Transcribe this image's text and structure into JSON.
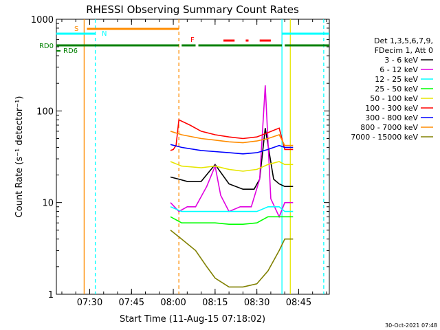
{
  "chart_data": {
    "type": "line",
    "title": "RHESSI Observing Summary Count Rates",
    "xlabel": "Start Time (11-Aug-15 07:18:02)",
    "ylabel": "Count Rate (s⁻¹ detector⁻¹)",
    "yscale": "log",
    "xlim": [
      "07:18:02",
      "08:56:00"
    ],
    "ylim": [
      1,
      1000
    ],
    "x_tick_labels": [
      "07:30",
      "07:45",
      "08:00",
      "08:15",
      "08:30",
      "08:45"
    ],
    "y_tick_labels": [
      "1",
      "10",
      "100",
      "1000"
    ],
    "legend_placement": "right",
    "legend_header": [
      "Det 1,3,5,6,7,9,",
      "FDecim 1, Att 0"
    ],
    "colors": {
      "3 - 6 keV": "#000000",
      "6 - 12 keV": "#e000e0",
      "12 - 25 keV": "#00ffff",
      "25 - 50 keV": "#00ff00",
      "50 - 100 keV": "#e6e600",
      "100 - 300 keV": "#ff0000",
      "300 - 800 keV": "#0000ff",
      "800 - 7000 keV": "#ff8c00",
      "7000 - 15000 keV": "#808000"
    },
    "series": [
      {
        "name": "3 - 6 keV",
        "x": [
          "07:59",
          "08:02",
          "08:05",
          "08:10",
          "08:15",
          "08:20",
          "08:25",
          "08:29",
          "08:31",
          "08:33",
          "08:36",
          "08:38",
          "08:40",
          "08:43"
        ],
        "y": [
          19,
          18,
          17,
          17,
          26,
          16,
          14,
          14,
          18,
          65,
          18,
          16,
          15,
          15
        ]
      },
      {
        "name": "6 - 12 keV",
        "x": [
          "07:59",
          "08:02",
          "08:05",
          "08:08",
          "08:12",
          "08:15",
          "08:17",
          "08:20",
          "08:24",
          "08:28",
          "08:31",
          "08:33",
          "08:35",
          "08:38",
          "08:40",
          "08:43"
        ],
        "y": [
          10,
          8,
          9,
          9,
          15,
          25,
          12,
          8,
          9,
          9,
          18,
          190,
          11,
          7,
          10,
          10
        ]
      },
      {
        "name": "12 - 25 keV",
        "x": [
          "07:59",
          "08:03",
          "08:10",
          "08:15",
          "08:20",
          "08:25",
          "08:30",
          "08:34",
          "08:38",
          "08:40",
          "08:43"
        ],
        "y": [
          9,
          8,
          8,
          8,
          8,
          8,
          8,
          9,
          9,
          8,
          8
        ]
      },
      {
        "name": "25 - 50 keV",
        "x": [
          "07:59",
          "08:03",
          "08:10",
          "08:15",
          "08:20",
          "08:25",
          "08:30",
          "08:34",
          "08:38",
          "08:40",
          "08:43"
        ],
        "y": [
          7,
          6,
          6,
          6,
          5.8,
          5.8,
          6,
          7,
          7,
          7,
          7
        ]
      },
      {
        "name": "50 - 100 keV",
        "x": [
          "07:59",
          "08:03",
          "08:10",
          "08:15",
          "08:20",
          "08:25",
          "08:30",
          "08:34",
          "08:38",
          "08:40",
          "08:43"
        ],
        "y": [
          28,
          25,
          24,
          25,
          23,
          22,
          23,
          26,
          28,
          26,
          26
        ]
      },
      {
        "name": "100 - 300 keV",
        "x": [
          "07:59",
          "08:00",
          "08:01",
          "08:02",
          "08:06",
          "08:10",
          "08:15",
          "08:20",
          "08:25",
          "08:30",
          "08:34",
          "08:38",
          "08:40",
          "08:43"
        ],
        "y": [
          37,
          38,
          42,
          80,
          70,
          60,
          55,
          52,
          50,
          52,
          58,
          65,
          38,
          38
        ]
      },
      {
        "name": "300 - 800 keV",
        "x": [
          "07:59",
          "08:03",
          "08:10",
          "08:15",
          "08:20",
          "08:25",
          "08:30",
          "08:34",
          "08:38",
          "08:40",
          "08:43"
        ],
        "y": [
          43,
          40,
          37,
          36,
          35,
          34,
          35,
          38,
          42,
          40,
          40
        ]
      },
      {
        "name": "800 - 7000 keV",
        "x": [
          "07:59",
          "08:03",
          "08:10",
          "08:15",
          "08:20",
          "08:25",
          "08:30",
          "08:34",
          "08:38",
          "08:40",
          "08:43"
        ],
        "y": [
          60,
          55,
          50,
          48,
          46,
          45,
          47,
          50,
          55,
          42,
          42
        ]
      },
      {
        "name": "7000 - 15000 keV",
        "x": [
          "07:59",
          "08:03",
          "08:08",
          "08:12",
          "08:15",
          "08:20",
          "08:25",
          "08:30",
          "08:34",
          "08:38",
          "08:40",
          "08:43"
        ],
        "y": [
          5,
          4,
          3,
          2,
          1.5,
          1.2,
          1.2,
          1.3,
          1.8,
          3,
          4,
          4
        ]
      }
    ],
    "status_bars": [
      {
        "label": "S",
        "color": "#ff8c00",
        "segments": [
          [
            "07:29",
            "08:02"
          ]
        ]
      },
      {
        "label": "N",
        "color": "#00ffff",
        "segments": [
          [
            "07:18",
            "07:32"
          ],
          [
            "08:39",
            "08:56"
          ]
        ]
      },
      {
        "label": "RD0",
        "color": "#008000",
        "segments": [
          [
            "07:18",
            "08:02"
          ],
          [
            "08:03",
            "08:08"
          ],
          [
            "08:09",
            "08:39"
          ],
          [
            "08:40",
            "08:56"
          ]
        ]
      },
      {
        "label": "F",
        "color": "#ff0000",
        "segments": [
          [
            "08:18",
            "08:22"
          ],
          [
            "08:26",
            "08:27"
          ],
          [
            "08:31",
            "08:35"
          ]
        ]
      },
      {
        "label": "RD6",
        "color": "#008000",
        "segments": []
      }
    ],
    "vertical_markers": [
      {
        "x": "07:28",
        "color": "#ff8c00",
        "style": "solid"
      },
      {
        "x": "07:32",
        "color": "#00ffff",
        "style": "dashed"
      },
      {
        "x": "08:02",
        "color": "#ff8c00",
        "style": "dashed"
      },
      {
        "x": "08:39",
        "color": "#00ffff",
        "style": "solid"
      },
      {
        "x": "08:42",
        "color": "#e6e600",
        "style": "solid"
      },
      {
        "x": "08:54",
        "color": "#00ffff",
        "style": "dashed"
      }
    ]
  },
  "footer": {
    "timestamp": "30-Oct-2021 07:48"
  }
}
